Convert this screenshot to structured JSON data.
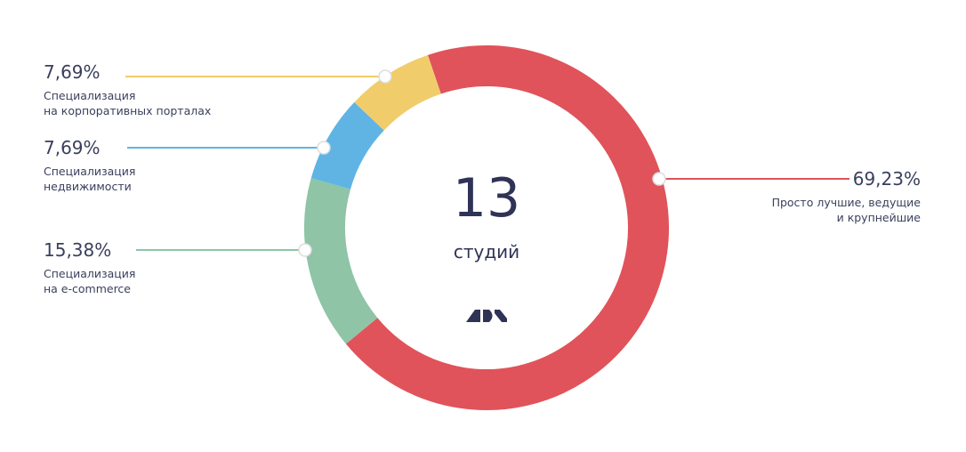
{
  "chart_data": {
    "type": "donut",
    "center_label": "13",
    "center_caption": "студий",
    "series": [
      {
        "name": "Просто лучшие, ведущие\nи крупнейшие",
        "color": "#e0535a",
        "values": [
          69.23
        ],
        "value_labels": [
          "69,23%"
        ]
      },
      {
        "name": "Специализация\nна e-commerce",
        "color": "#8fc4a6",
        "values": [
          15.38
        ],
        "value_labels": [
          "15,38%"
        ]
      },
      {
        "name": "Специализация\nнедвижимости",
        "color": "#5fb4e4",
        "values": [
          7.69
        ],
        "value_labels": [
          "7,69%"
        ]
      },
      {
        "name": "Специализация\nна корпоративных порталах",
        "color": "#f0cd6a",
        "values": [
          7.69
        ],
        "value_labels": [
          "7,69%"
        ]
      }
    ]
  }
}
